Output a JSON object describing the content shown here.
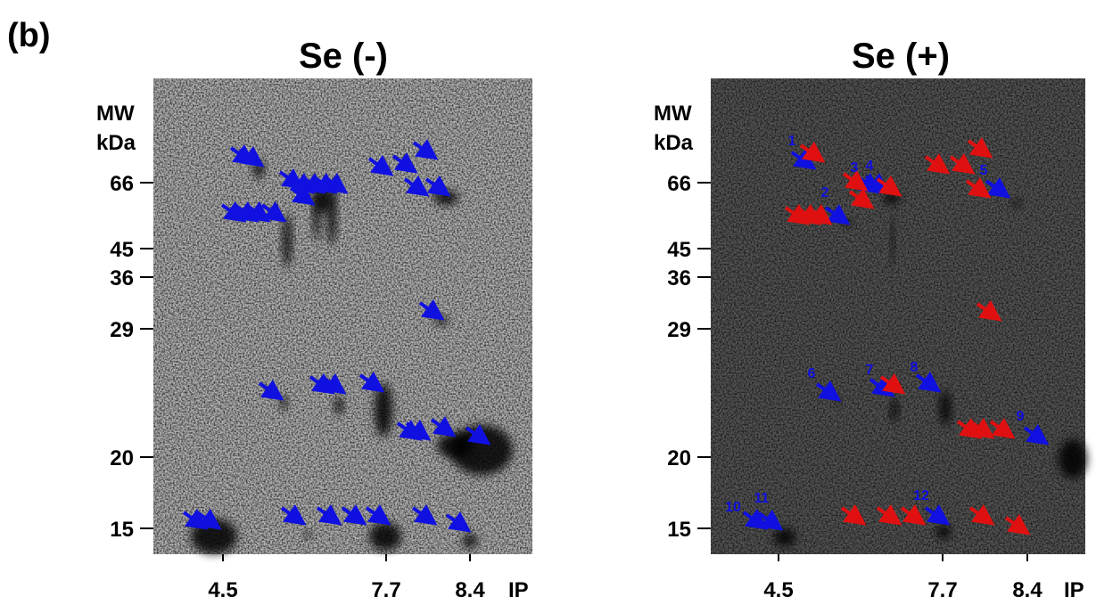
{
  "label": "(b)",
  "panels": [
    {
      "title": "Se (-)",
      "mw_header": [
        "MW",
        "kDa"
      ],
      "mw_ticks": [
        "66",
        "45",
        "36",
        "29",
        "20",
        "15"
      ],
      "pi_ticks": [
        "4.5",
        "7.7",
        "8.4"
      ],
      "pi_unit": "IP",
      "spot_labels": []
    },
    {
      "title": "Se (+)",
      "mw_header": [
        "MW",
        "kDa"
      ],
      "mw_ticks": [
        "66",
        "45",
        "36",
        "29",
        "20",
        "15"
      ],
      "pi_ticks": [
        "4.5",
        "7.7",
        "8.4"
      ],
      "pi_unit": "IP",
      "spot_labels": [
        "1",
        "2",
        "3",
        "4",
        "5",
        "6",
        "7",
        "8",
        "9",
        "10",
        "11",
        "12"
      ]
    }
  ]
}
